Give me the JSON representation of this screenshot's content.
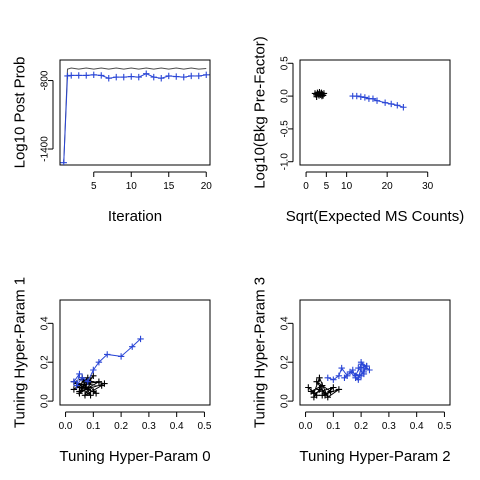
{
  "chart_data": [
    {
      "type": "line",
      "xlabel": "Iteration",
      "ylabel": "Log10 Post Prob",
      "xlim": [
        0.5,
        20.5
      ],
      "ylim": [
        -1540,
        -620
      ],
      "xticks": [
        5,
        10,
        15,
        20
      ],
      "yticks": [
        -1400,
        -800
      ],
      "series": [
        {
          "color": "#4d4d4d",
          "marker": "none",
          "x": [
            1,
            1.5,
            2,
            3,
            4,
            5,
            6,
            7,
            8,
            9,
            10,
            11,
            12,
            13,
            14,
            15,
            16,
            17,
            18,
            19,
            20
          ],
          "y": [
            -1520,
            -700,
            -690,
            -700,
            -690,
            -700,
            -690,
            -700,
            -690,
            -700,
            -690,
            -700,
            -690,
            -700,
            -690,
            -700,
            -690,
            -700,
            -690,
            -700,
            -695
          ]
        },
        {
          "color": "#2a46d6",
          "marker": "plus",
          "x": [
            1,
            1.5,
            2,
            3,
            4,
            5,
            6,
            7,
            8,
            9,
            10,
            11,
            12,
            13,
            14,
            15,
            16,
            17,
            18,
            19,
            20
          ],
          "y": [
            -1520,
            -760,
            -755,
            -755,
            -755,
            -750,
            -755,
            -780,
            -770,
            -770,
            -765,
            -770,
            -740,
            -770,
            -780,
            -760,
            -765,
            -770,
            -760,
            -760,
            -750
          ]
        }
      ]
    },
    {
      "type": "scatter",
      "xlabel": "Sqrt(Expected MS Counts)",
      "ylabel": "Log10(Bkg Pre-Factor)",
      "xlim": [
        -1.5,
        35.5
      ],
      "ylim": [
        -1.05,
        0.55
      ],
      "xticks": [
        0,
        5,
        10,
        20,
        30
      ],
      "yticks": [
        -1.0,
        -0.5,
        0.0,
        0.5
      ],
      "series": [
        {
          "color": "#000000",
          "marker": "plus",
          "connect": false,
          "x": [
            2.2,
            2.5,
            2.8,
            3.0,
            3.2,
            3.4,
            3.6,
            3.8,
            4.0,
            4.2,
            4.4,
            2.6,
            3.3,
            3.9
          ],
          "y": [
            0.04,
            0.02,
            0.05,
            0.03,
            0.01,
            0.04,
            0.02,
            0.05,
            0.03,
            0.01,
            0.04,
            -0.01,
            0.06,
            0.0
          ]
        },
        {
          "color": "#2a46d6",
          "marker": "plus",
          "connect": true,
          "x": [
            11.5,
            12.5,
            13.5,
            14.5,
            15.5,
            16.5,
            17.5,
            19.5,
            21.0,
            22.5,
            24.0
          ],
          "y": [
            0.0,
            0.0,
            -0.01,
            -0.02,
            -0.04,
            -0.04,
            -0.07,
            -0.1,
            -0.12,
            -0.14,
            -0.17
          ]
        }
      ]
    },
    {
      "type": "scatter",
      "xlabel": "Tuning Hyper-Param 0",
      "ylabel": "Tuning Hyper-Param 1",
      "xlim": [
        -0.02,
        0.52
      ],
      "ylim": [
        -0.02,
        0.52
      ],
      "xticks": [
        0.0,
        0.1,
        0.2,
        0.3,
        0.4,
        0.5
      ],
      "yticks": [
        0.0,
        0.2,
        0.4
      ],
      "series": [
        {
          "color": "#000000",
          "marker": "plus",
          "connect": true,
          "x": [
            0.03,
            0.08,
            0.05,
            0.12,
            0.04,
            0.09,
            0.06,
            0.14,
            0.05,
            0.1,
            0.07,
            0.03,
            0.11,
            0.06,
            0.08,
            0.04,
            0.13,
            0.07,
            0.09,
            0.05,
            0.1
          ],
          "y": [
            0.06,
            0.12,
            0.04,
            0.1,
            0.08,
            0.03,
            0.11,
            0.09,
            0.05,
            0.13,
            0.07,
            0.1,
            0.04,
            0.12,
            0.06,
            0.09,
            0.08,
            0.03,
            0.1,
            0.07,
            0.05
          ]
        },
        {
          "color": "#2a46d6",
          "marker": "plus",
          "connect": true,
          "x": [
            0.03,
            0.05,
            0.04,
            0.06,
            0.08,
            0.1,
            0.12,
            0.15,
            0.2,
            0.24,
            0.27
          ],
          "y": [
            0.1,
            0.14,
            0.08,
            0.12,
            0.1,
            0.16,
            0.2,
            0.24,
            0.23,
            0.28,
            0.32
          ]
        }
      ]
    },
    {
      "type": "scatter",
      "xlabel": "Tuning Hyper-Param 2",
      "ylabel": "Tuning Hyper-Param 3",
      "xlim": [
        -0.02,
        0.52
      ],
      "ylim": [
        -0.02,
        0.52
      ],
      "xticks": [
        0.0,
        0.1,
        0.2,
        0.3,
        0.4,
        0.5
      ],
      "yticks": [
        0.0,
        0.2,
        0.4
      ],
      "series": [
        {
          "color": "#000000",
          "marker": "plus",
          "connect": true,
          "x": [
            0.01,
            0.04,
            0.02,
            0.06,
            0.03,
            0.05,
            0.07,
            0.04,
            0.09,
            0.06,
            0.12,
            0.08,
            0.05,
            0.03,
            0.1,
            0.07
          ],
          "y": [
            0.07,
            0.03,
            0.05,
            0.08,
            0.02,
            0.06,
            0.04,
            0.1,
            0.05,
            0.03,
            0.06,
            0.02,
            0.12,
            0.04,
            0.07,
            0.03
          ]
        },
        {
          "color": "#2a46d6",
          "marker": "plus",
          "connect": true,
          "x": [
            0.08,
            0.1,
            0.12,
            0.13,
            0.15,
            0.14,
            0.17,
            0.18,
            0.19,
            0.16,
            0.2,
            0.21,
            0.22,
            0.19,
            0.21,
            0.18,
            0.2,
            0.23,
            0.2,
            0.22,
            0.21,
            0.19,
            0.2
          ],
          "y": [
            0.12,
            0.11,
            0.13,
            0.17,
            0.13,
            0.12,
            0.16,
            0.12,
            0.11,
            0.15,
            0.13,
            0.16,
            0.18,
            0.17,
            0.14,
            0.13,
            0.19,
            0.16,
            0.2,
            0.18,
            0.15,
            0.12,
            0.17
          ]
        }
      ]
    }
  ]
}
